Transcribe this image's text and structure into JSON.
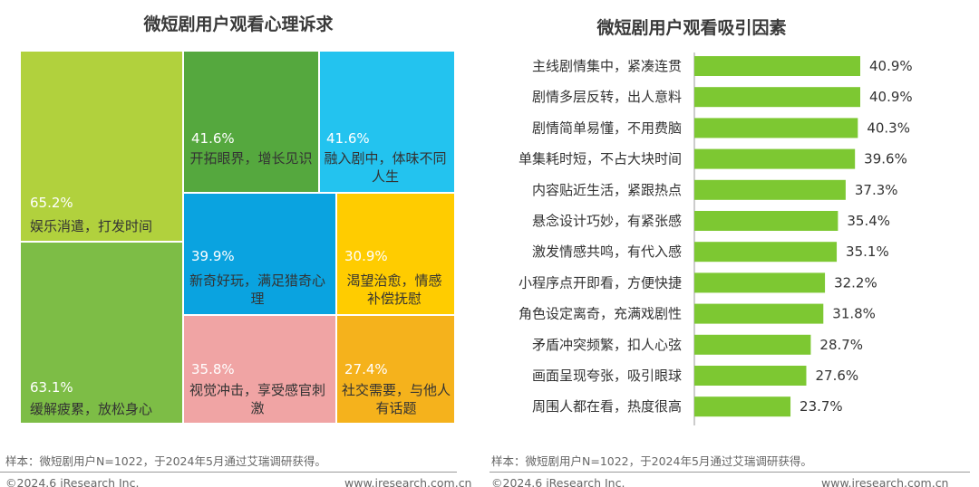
{
  "left": {
    "title": "微短剧用户观看心理诉求",
    "cells": [
      {
        "pct": "65.2%",
        "label": "娱乐消遣，打发时间",
        "color": "#b1d13d"
      },
      {
        "pct": "63.1%",
        "label": "缓解疲累，放松身心",
        "color": "#7dbd46"
      },
      {
        "pct": "41.6%",
        "label": "开拓眼界，增长见识",
        "color": "#55a83e"
      },
      {
        "pct": "41.6%",
        "label": "融入剧中，体味不同人生",
        "color": "#23c3ef"
      },
      {
        "pct": "39.9%",
        "label": "新奇好玩，满足猎奇心理",
        "color": "#0aa3e0"
      },
      {
        "pct": "30.9%",
        "label": "渴望治愈，情感补偿抚慰",
        "color": "#ffcc00"
      },
      {
        "pct": "35.8%",
        "label": "视觉冲击，享受感官刺激",
        "color": "#f0a4a4"
      },
      {
        "pct": "27.4%",
        "label": "社交需要，与他人有话题",
        "color": "#f5b21c"
      }
    ],
    "source": "样本：微短剧用户N=1022，于2024年5月通过艾瑞调研获得。",
    "copyright": "©2024.6 iResearch Inc.",
    "website": "www.iresearch.com.cn"
  },
  "right": {
    "title": "微短剧用户观看吸引因素",
    "source": "样本：微短剧用户N=1022，于2024年5月通过艾瑞调研获得。",
    "copyright": "©2024.6 iResearch Inc.",
    "website": "www.iresearch.com.cn"
  },
  "chart_data": [
    {
      "type": "treemap",
      "title": "微短剧用户观看心理诉求",
      "categories": [
        "娱乐消遣，打发时间",
        "缓解疲累，放松身心",
        "开拓眼界，增长见识",
        "融入剧中，体味不同人生",
        "新奇好玩，满足猎奇心理",
        "渴望治愈，情感补偿抚慰",
        "视觉冲击，享受感官刺激",
        "社交需要，与他人有话题"
      ],
      "values": [
        65.2,
        63.1,
        41.6,
        41.6,
        39.9,
        30.9,
        35.8,
        27.4
      ],
      "unit": "%"
    },
    {
      "type": "bar",
      "orientation": "horizontal",
      "title": "微短剧用户观看吸引因素",
      "categories": [
        "主线剧情集中，紧凑连贯",
        "剧情多层反转，出人意料",
        "剧情简单易懂，不用费脑",
        "单集耗时短，不占大块时间",
        "内容贴近生活，紧跟热点",
        "悬念设计巧妙，有紧张感",
        "激发情感共鸣，有代入感",
        "小程序点开即看，方便快捷",
        "角色设定离奇，充满戏剧性",
        "矛盾冲突频繁，扣人心弦",
        "画面呈现夸张，吸引眼球",
        "周围人都在看，热度很高"
      ],
      "values": [
        40.9,
        40.9,
        40.3,
        39.6,
        37.3,
        35.4,
        35.1,
        32.2,
        31.8,
        28.7,
        27.6,
        23.7
      ],
      "value_labels": [
        "40.9%",
        "40.9%",
        "40.3%",
        "39.6%",
        "37.3%",
        "35.4%",
        "35.1%",
        "32.2%",
        "31.8%",
        "28.7%",
        "27.6%",
        "23.7%"
      ],
      "color": "#7dc832",
      "grid": false
    }
  ]
}
